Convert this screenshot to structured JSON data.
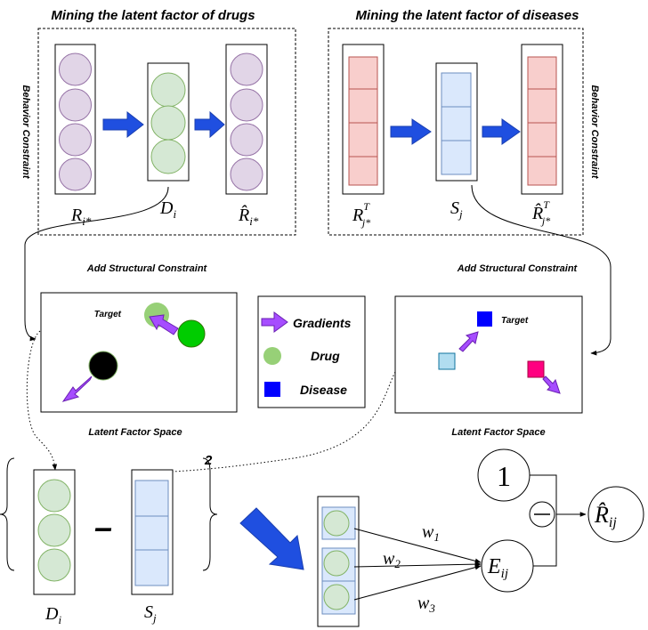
{
  "titles": {
    "drugs": "Mining the latent factor of drugs",
    "diseases": "Mining the latent factor of diseases"
  },
  "side_labels": {
    "left": "Behavior Constraint",
    "right": "Behavior Constraint"
  },
  "matrix_labels": {
    "R_base": "R",
    "R_sub": "i*",
    "D_base": "D",
    "D_sub": "i",
    "Rhat_base": "R̂",
    "Rhat_sub": "i*",
    "RT_base": "R",
    "RT_sub": "j*",
    "RT_sup": "T",
    "S_base": "S",
    "S_sub": "j",
    "RhatT_base": "R̂",
    "RhatT_sub": "j*",
    "RhatT_sup": "T"
  },
  "structural": {
    "left": "Add Structural Constraint",
    "right": "Add Structural Constraint"
  },
  "space": {
    "left_target": "Target",
    "right_target": "Target",
    "left_caption": "Latent Factor Space",
    "right_caption": "Latent Factor Space"
  },
  "legend": {
    "gradients": "Gradients",
    "drug": "Drug",
    "disease": "Disease"
  },
  "bottom": {
    "power": "2",
    "minus": "–",
    "D_base": "D",
    "D_sub": "i",
    "S_base": "S",
    "S_sub": "j",
    "w1": "w",
    "w1_sub": "1",
    "w2": "w",
    "w2_sub": "2",
    "w3": "w",
    "w3_sub": "3",
    "E_base": "E",
    "E_sub": "ij",
    "one": "1",
    "Rhat_base": "R̂",
    "Rhat_sub": "ij"
  },
  "colors": {
    "purple_fill": "#e1d5e7",
    "purple_stroke": "#9673a6",
    "green_fill": "#d5e8d4",
    "green_stroke": "#82b366",
    "pink_fill": "#f8cecc",
    "pink_stroke": "#b85450",
    "blue_fill": "#dae8fc",
    "blue_stroke": "#6c8ebf",
    "arrow_blue": "#1f4fe0",
    "arrow_purple": "#a64dff",
    "drug_green": "#97d077",
    "drug_bright": "#00cc00",
    "disease_blue": "#0000ff",
    "magenta": "#ff0080"
  }
}
